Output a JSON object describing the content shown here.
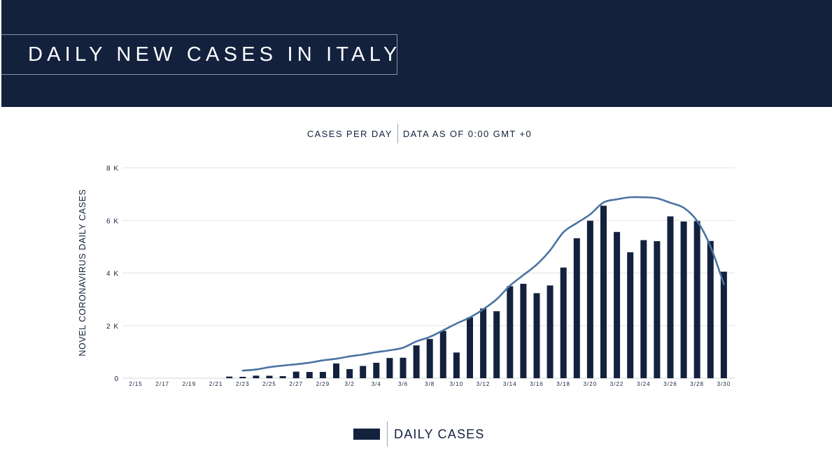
{
  "header": {
    "title": "DAILY NEW CASES IN ITALY"
  },
  "subtitle": {
    "left": "CASES PER DAY",
    "right": "DATA AS OF 0:00 GMT +0"
  },
  "legend": {
    "label": "DAILY CASES",
    "swatch_color": "#13213d"
  },
  "colors": {
    "banner": "#13213d",
    "bar": "#13213d",
    "line": "#4a73a3",
    "grid": "#e3e3e3"
  },
  "chart_data": {
    "type": "bar",
    "title": "DAILY NEW CASES IN ITALY",
    "ylabel": "NOVEL CORONAVIRUS DAILY CASES",
    "xlabel": "",
    "ylim": [
      0,
      8000
    ],
    "yticks": [
      0,
      2000,
      4000,
      6000,
      8000
    ],
    "ytick_labels": [
      "0",
      "2 K",
      "4 K",
      "6 K",
      "8 K"
    ],
    "grid": true,
    "legend": "bottom-center",
    "categories": [
      "2/15",
      "2/16",
      "2/17",
      "2/18",
      "2/19",
      "2/20",
      "2/21",
      "2/22",
      "2/23",
      "2/24",
      "2/25",
      "2/26",
      "2/27",
      "2/28",
      "2/29",
      "3/1",
      "3/2",
      "3/3",
      "3/4",
      "3/5",
      "3/6",
      "3/7",
      "3/8",
      "3/9",
      "3/10",
      "3/11",
      "3/12",
      "3/13",
      "3/14",
      "3/15",
      "3/16",
      "3/17",
      "3/18",
      "3/19",
      "3/20",
      "3/21",
      "3/22",
      "3/23",
      "3/24",
      "3/25",
      "3/26",
      "3/27",
      "3/28",
      "3/29",
      "3/30"
    ],
    "xtick_labels": [
      "2/15",
      "2/17",
      "2/19",
      "2/21",
      "2/23",
      "2/25",
      "2/27",
      "2/29",
      "3/2",
      "3/4",
      "3/6",
      "3/8",
      "3/10",
      "3/12",
      "3/14",
      "3/16",
      "3/18",
      "3/20",
      "3/22",
      "3/24",
      "3/26",
      "3/28",
      "3/30"
    ],
    "series": [
      {
        "name": "DAILY CASES",
        "type": "bar",
        "values": [
          0,
          0,
          0,
          0,
          0,
          0,
          0,
          62,
          53,
          97,
          93,
          78,
          250,
          238,
          240,
          561,
          347,
          466,
          587,
          769,
          778,
          1247,
          1492,
          1797,
          977,
          2313,
          2651,
          2547,
          3497,
          3590,
          3233,
          3526,
          4207,
          5322,
          5986,
          6557,
          5560,
          4789,
          5249,
          5210,
          6153,
          5959,
          5974,
          5217,
          4050
        ]
      },
      {
        "name": "",
        "type": "line",
        "smooth": true,
        "x": [
          "2/23",
          "2/24",
          "2/25",
          "2/26",
          "2/27",
          "2/28",
          "2/29",
          "3/1",
          "3/2",
          "3/3",
          "3/4",
          "3/5",
          "3/6",
          "3/7",
          "3/8",
          "3/9",
          "3/10",
          "3/11",
          "3/12",
          "3/13",
          "3/14",
          "3/15",
          "3/16",
          "3/17",
          "3/18",
          "3/19",
          "3/20",
          "3/21",
          "3/22",
          "3/23",
          "3/24",
          "3/25",
          "3/26",
          "3/27",
          "3/28",
          "3/29",
          "3/30"
        ],
        "values": [
          290,
          330,
          420,
          480,
          530,
          590,
          680,
          740,
          830,
          900,
          990,
          1060,
          1160,
          1400,
          1570,
          1820,
          2080,
          2310,
          2620,
          3000,
          3520,
          3920,
          4320,
          4860,
          5550,
          5900,
          6230,
          6680,
          6800,
          6880,
          6880,
          6840,
          6670,
          6480,
          5980,
          5010,
          3580
        ]
      }
    ]
  }
}
